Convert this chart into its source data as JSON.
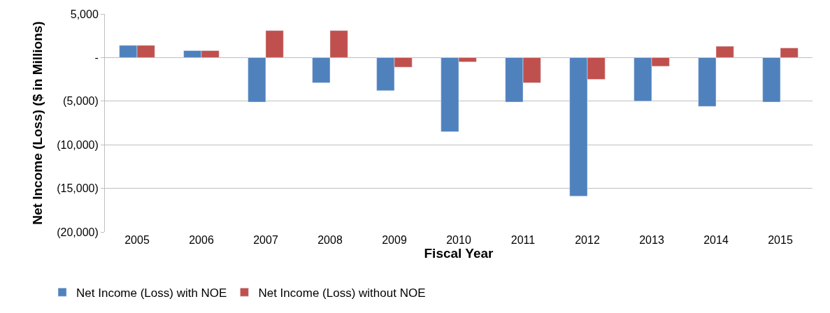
{
  "chart_data": {
    "type": "bar",
    "xlabel": "Fiscal Year",
    "ylabel": "Net Income (Loss) ($ in Millions)",
    "categories": [
      "2005",
      "2006",
      "2007",
      "2008",
      "2009",
      "2010",
      "2011",
      "2012",
      "2013",
      "2014",
      "2015"
    ],
    "series": [
      {
        "name": "Net Income (Loss) with NOE",
        "color": "#4f81bd",
        "values": [
          1400,
          800,
          -5100,
          -2900,
          -3800,
          -8500,
          -5100,
          -15900,
          -5000,
          -5600,
          -5100
        ]
      },
      {
        "name": "Net Income (Loss) without NOE",
        "color": "#c0504d",
        "values": [
          1400,
          800,
          3100,
          3100,
          -1100,
          -500,
          -2900,
          -2500,
          -1000,
          1300,
          1100
        ]
      }
    ],
    "ylim": [
      -20000,
      5000
    ],
    "yticks": [
      {
        "value": -20000,
        "label": "(20,000)"
      },
      {
        "value": -15000,
        "label": "(15,000)"
      },
      {
        "value": -10000,
        "label": "(10,000)"
      },
      {
        "value": -5000,
        "label": "(5,000)"
      },
      {
        "value": 0,
        "label": "-"
      },
      {
        "value": 5000,
        "label": "5,000"
      }
    ],
    "grid": "y",
    "legend": "bottom left"
  }
}
